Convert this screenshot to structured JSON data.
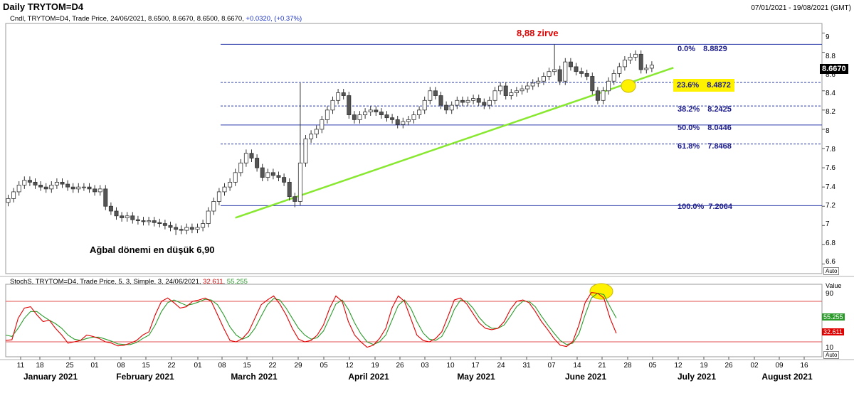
{
  "header": {
    "title": "Daily TRYTOM=D4",
    "date_range": "07/01/2021 - 19/08/2021 (GMT)"
  },
  "main_info": {
    "prefix": "Cndl, TRYTOM=D4, Trade Price, 24/06/2021, 8.6500, 8.6670, 8.6500, 8.6670,",
    "change": "+0.0320, (+0.37%)"
  },
  "stoch_info": {
    "prefix": "StochS, TRYTOM=D4, Trade Price,  5, 3, Simple, 3, 24/06/2021,",
    "k_value": "32.611",
    "d_value": "55.255"
  },
  "annotations": {
    "peak_label": "8,88 zirve",
    "low_label": "Ağbal dönemi en düşük 6,90"
  },
  "current_price": "8.6670",
  "colors": {
    "bull_candle": "#ffffff",
    "bear_candle": "#555555",
    "trendline": "#88e830",
    "fib_line": "#2a3aa8",
    "stoch_k": "#e00000",
    "stoch_d": "#2a9a2a",
    "highlight": "#fff200"
  },
  "chart_data": [
    {
      "type": "candlestick",
      "title": "Daily TRYTOM=D4",
      "ylim": [
        6.5,
        9.1
      ],
      "y_ticks": [
        "6.6",
        "6.8",
        "7",
        "7.2",
        "7.4",
        "7.6",
        "7.8",
        "8",
        "8.2",
        "8.4",
        "8.6",
        "8.8",
        "9"
      ],
      "x_ticks": [
        "11",
        "18",
        "25",
        "01",
        "08",
        "15",
        "22",
        "01",
        "08",
        "15",
        "22",
        "29",
        "05",
        "12",
        "19",
        "26",
        "03",
        "10",
        "17",
        "24",
        "31",
        "07",
        "14",
        "21",
        "28",
        "05",
        "12",
        "19",
        "26",
        "02",
        "09",
        "16"
      ],
      "months": [
        "January 2021",
        "February 2021",
        "March 2021",
        "April 2021",
        "May 2021",
        "June 2021",
        "July 2021",
        "August 2021"
      ],
      "auto_label": "Auto",
      "fibonacci": [
        {
          "pct": "0.0%",
          "value": "8.8829",
          "solid": true
        },
        {
          "pct": "23.6%",
          "value": "8.4872",
          "solid": false,
          "highlight": true
        },
        {
          "pct": "38.2%",
          "value": "8.2425",
          "solid": false
        },
        {
          "pct": "50.0%",
          "value": "8.0446",
          "solid": true
        },
        {
          "pct": "61.8%",
          "value": "7.8468",
          "solid": false
        },
        {
          "pct": "100.0%",
          "value": "7.2064",
          "solid": true
        }
      ],
      "trendline": {
        "from": {
          "date": "2021-03-10",
          "value": 7.08
        },
        "to": {
          "date": "2021-07-01",
          "value": 8.64
        }
      },
      "closes": [
        7.28,
        7.35,
        7.42,
        7.47,
        7.45,
        7.42,
        7.4,
        7.38,
        7.42,
        7.45,
        7.43,
        7.4,
        7.38,
        7.4,
        7.4,
        7.38,
        7.35,
        7.38,
        7.2,
        7.15,
        7.1,
        7.08,
        7.1,
        7.06,
        7.05,
        7.04,
        7.05,
        7.03,
        7.02,
        7.0,
        6.98,
        6.96,
        6.95,
        6.98,
        6.96,
        6.98,
        7.02,
        7.15,
        7.25,
        7.35,
        7.4,
        7.45,
        7.55,
        7.65,
        7.75,
        7.7,
        7.6,
        7.5,
        7.55,
        7.52,
        7.5,
        7.45,
        7.3,
        7.25,
        7.65,
        7.9,
        7.95,
        8.0,
        8.1,
        8.2,
        8.3,
        8.38,
        8.35,
        8.15,
        8.1,
        8.15,
        8.18,
        8.2,
        8.18,
        8.15,
        8.12,
        8.1,
        8.05,
        8.08,
        8.1,
        8.15,
        8.2,
        8.3,
        8.4,
        8.35,
        8.25,
        8.2,
        8.25,
        8.3,
        8.28,
        8.3,
        8.32,
        8.28,
        8.25,
        8.3,
        8.4,
        8.45,
        8.35,
        8.38,
        8.4,
        8.42,
        8.45,
        8.48,
        8.5,
        8.55,
        8.6,
        8.62,
        8.5,
        8.7,
        8.65,
        8.6,
        8.58,
        8.55,
        8.4,
        8.3,
        8.4,
        8.5,
        8.58,
        8.65,
        8.72,
        8.75,
        8.78,
        8.62,
        8.635,
        8.667
      ]
    },
    {
      "type": "line",
      "title": "StochS",
      "ylim": [
        0,
        100
      ],
      "value_label": "Value",
      "y_ticks": [
        "10",
        "90"
      ],
      "auto_label": "Auto",
      "series": [
        {
          "name": "%K",
          "values": [
            22,
            23,
            55,
            70,
            72,
            60,
            50,
            52,
            40,
            30,
            18,
            20,
            22,
            30,
            28,
            25,
            20,
            18,
            14,
            15,
            18,
            22,
            30,
            35,
            60,
            80,
            85,
            78,
            70,
            72,
            80,
            82,
            85,
            80,
            60,
            40,
            22,
            20,
            25,
            35,
            55,
            75,
            82,
            88,
            76,
            60,
            40,
            24,
            20,
            22,
            30,
            45,
            70,
            88,
            80,
            50,
            30,
            20,
            12,
            15,
            25,
            40,
            70,
            88,
            80,
            55,
            30,
            22,
            20,
            25,
            35,
            58,
            82,
            85,
            76,
            62,
            48,
            40,
            38,
            40,
            50,
            68,
            80,
            82,
            78,
            65,
            50,
            38,
            25,
            15,
            13,
            20,
            45,
            78,
            93,
            92,
            85,
            55,
            32.611
          ]
        },
        {
          "name": "%D",
          "values": [
            30,
            28,
            40,
            55,
            65,
            65,
            58,
            52,
            47,
            40,
            30,
            24,
            22,
            25,
            27,
            27,
            24,
            21,
            17,
            16,
            16,
            19,
            25,
            30,
            45,
            65,
            78,
            82,
            78,
            74,
            76,
            79,
            83,
            82,
            75,
            60,
            42,
            30,
            24,
            28,
            40,
            58,
            75,
            84,
            82,
            70,
            55,
            40,
            30,
            24,
            26,
            36,
            56,
            76,
            82,
            68,
            48,
            32,
            20,
            16,
            20,
            30,
            52,
            74,
            82,
            70,
            50,
            33,
            24,
            22,
            28,
            45,
            68,
            82,
            80,
            70,
            56,
            46,
            40,
            40,
            45,
            58,
            72,
            80,
            80,
            72,
            58,
            45,
            33,
            22,
            16,
            18,
            32,
            60,
            85,
            92,
            90,
            72,
            55.255
          ]
        }
      ]
    }
  ]
}
